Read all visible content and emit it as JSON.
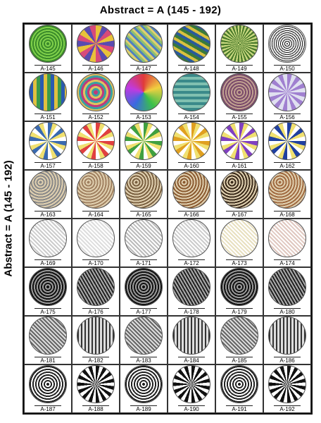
{
  "title": "Abstract = A (145 - 192)",
  "side_title": "Abstract = A (145 - 192)",
  "items": [
    "A-145",
    "A-146",
    "A-147",
    "A-148",
    "A-149",
    "A-150",
    "A-151",
    "A-152",
    "A-153",
    "A-154",
    "A-155",
    "A-156",
    "A-157",
    "A-158",
    "A-159",
    "A-160",
    "A-161",
    "A-162",
    "A-163",
    "A-164",
    "A-165",
    "A-166",
    "A-167",
    "A-168",
    "A-169",
    "A-170",
    "A-171",
    "A-172",
    "A-173",
    "A-174",
    "A-175",
    "A-176",
    "A-177",
    "A-178",
    "A-179",
    "A-180",
    "A-181",
    "A-182",
    "A-183",
    "A-184",
    "A-185",
    "A-186",
    "A-187",
    "A-188",
    "A-189",
    "A-190",
    "A-191",
    "A-192"
  ]
}
